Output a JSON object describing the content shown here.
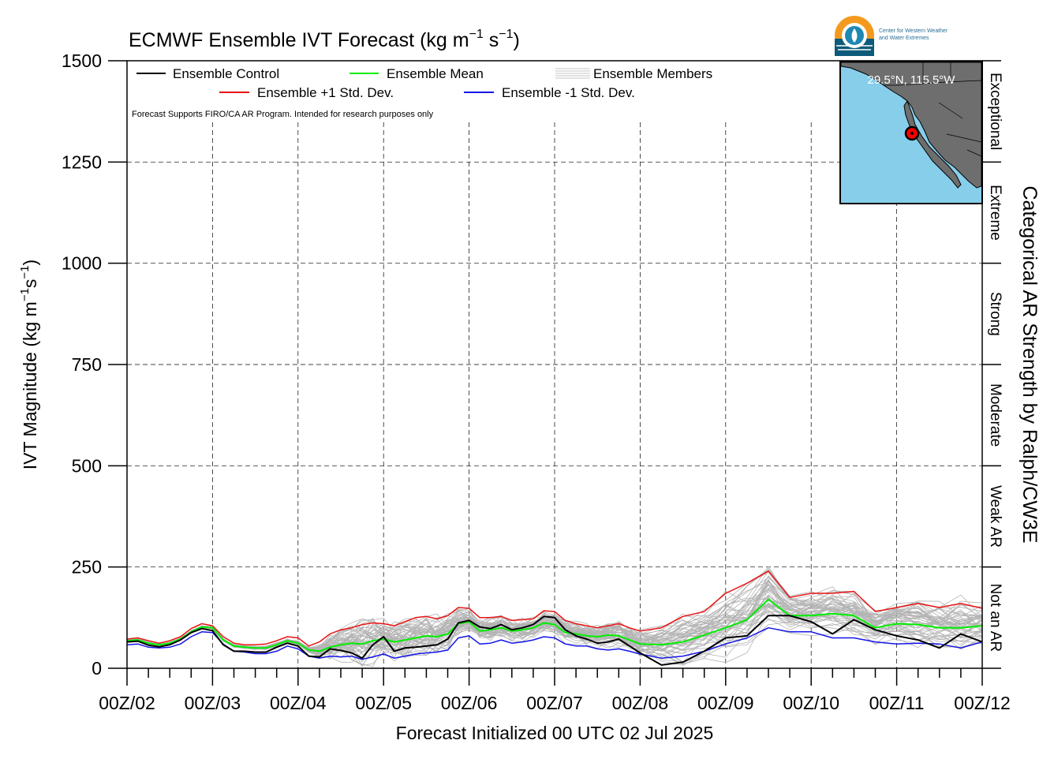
{
  "chart_data": {
    "type": "line",
    "title": "ECMWF Ensemble IVT Forecast (kg m",
    "title_sup1": "−1",
    "title_mid": " s",
    "title_sup2": "−1",
    "title_end": ")",
    "ylabel": "IVT Magnitude (kg m",
    "ylabel_sup1": "−1",
    "ylabel_mid": "s",
    "ylabel_sup2": "−1",
    "ylabel_end": ")",
    "y2label": "Categorical AR Strength by Ralph/CW3E",
    "xlabel": "Forecast Initialized 00 UTC 02 Jul 2025",
    "note": "Forecast Supports FIRO/CA AR Program. Intended for research purposes only",
    "ylim": [
      0,
      1500
    ],
    "yticks": [
      "0",
      "250",
      "500",
      "750",
      "1000",
      "1250",
      "1500"
    ],
    "yticks_values": [
      0,
      250,
      500,
      750,
      1000,
      1250,
      1500
    ],
    "xlim_days": [
      0,
      10
    ],
    "xticks": [
      "00Z/02",
      "00Z/03",
      "00Z/04",
      "00Z/05",
      "00Z/06",
      "00Z/07",
      "00Z/08",
      "00Z/09",
      "00Z/10",
      "00Z/11",
      "00Z/12"
    ],
    "categories": [
      {
        "label": "Not an AR",
        "range": [
          0,
          250
        ]
      },
      {
        "label": "Weak AR",
        "range": [
          250,
          500
        ]
      },
      {
        "label": "Moderate",
        "range": [
          500,
          750
        ]
      },
      {
        "label": "Strong",
        "range": [
          750,
          1000
        ]
      },
      {
        "label": "Extreme",
        "range": [
          1000,
          1250
        ]
      },
      {
        "label": "Exceptional",
        "range": [
          1250,
          1500
        ]
      }
    ],
    "grid": true,
    "legend_position": "top-left",
    "legend": [
      {
        "label": "Ensemble Control",
        "color": "#000000",
        "kind": "line"
      },
      {
        "label": "Ensemble Mean",
        "color": "#00ee00",
        "kind": "line"
      },
      {
        "label": "Ensemble Members",
        "color": "#b3b3b3",
        "kind": "lines"
      },
      {
        "label": "Ensemble +1 Std. Dev.",
        "color": "#e81414",
        "kind": "line"
      },
      {
        "label": "Ensemble -1 Std. Dev.",
        "color": "#1414e8",
        "kind": "line"
      }
    ],
    "series": [
      {
        "name": "Ensemble Control",
        "color": "#000000",
        "width": 2,
        "x": [
          0,
          0.125,
          0.25,
          0.375,
          0.5,
          0.625,
          0.75,
          0.875,
          1,
          1.125,
          1.25,
          1.375,
          1.5,
          1.625,
          1.75,
          1.875,
          2,
          2.125,
          2.25,
          2.375,
          2.5,
          2.625,
          2.75,
          2.875,
          3,
          3.125,
          3.25,
          3.375,
          3.5,
          3.625,
          3.75,
          3.875,
          4,
          4.125,
          4.25,
          4.375,
          4.5,
          4.625,
          4.75,
          4.875,
          5,
          5.125,
          5.25,
          5.375,
          5.5,
          5.625,
          5.75,
          5.875,
          6,
          6.25,
          6.5,
          6.75,
          7,
          7.25,
          7.5,
          7.75,
          8,
          8.25,
          8.5,
          8.75,
          9,
          9.25,
          9.5,
          9.75,
          10
        ],
        "y": [
          65,
          67,
          57,
          53,
          58,
          70,
          88,
          98,
          93,
          58,
          42,
          42,
          40,
          40,
          52,
          62,
          55,
          30,
          28,
          48,
          44,
          38,
          25,
          58,
          78,
          42,
          50,
          52,
          55,
          58,
          72,
          112,
          118,
          102,
          98,
          108,
          95,
          100,
          108,
          128,
          125,
          95,
          80,
          72,
          62,
          65,
          72,
          55,
          38,
          8,
          15,
          42,
          75,
          80,
          130,
          130,
          115,
          85,
          120,
          95,
          80,
          70,
          50,
          85,
          65
        ]
      },
      {
        "name": "Ensemble Mean",
        "color": "#00ee00",
        "width": 2,
        "x": [
          0,
          0.125,
          0.25,
          0.375,
          0.5,
          0.625,
          0.75,
          0.875,
          1,
          1.125,
          1.25,
          1.375,
          1.5,
          1.625,
          1.75,
          1.875,
          2,
          2.125,
          2.25,
          2.375,
          2.5,
          2.625,
          2.75,
          2.875,
          3,
          3.125,
          3.25,
          3.375,
          3.5,
          3.625,
          3.75,
          3.875,
          4,
          4.125,
          4.25,
          4.375,
          4.5,
          4.625,
          4.75,
          4.875,
          5,
          5.125,
          5.25,
          5.375,
          5.5,
          5.625,
          5.75,
          5.875,
          6,
          6.25,
          6.5,
          6.75,
          7,
          7.25,
          7.5,
          7.75,
          8,
          8.25,
          8.5,
          8.75,
          9,
          9.25,
          9.5,
          9.75,
          10
        ],
        "y": [
          68,
          70,
          62,
          58,
          62,
          72,
          90,
          102,
          100,
          70,
          55,
          52,
          50,
          50,
          58,
          68,
          62,
          45,
          42,
          52,
          58,
          62,
          60,
          68,
          72,
          65,
          70,
          75,
          80,
          78,
          85,
          110,
          115,
          92,
          95,
          100,
          92,
          95,
          100,
          112,
          108,
          88,
          85,
          80,
          78,
          82,
          80,
          70,
          60,
          58,
          65,
          82,
          100,
          120,
          170,
          130,
          130,
          135,
          130,
          100,
          110,
          108,
          100,
          100,
          105
        ]
      },
      {
        "name": "Ensemble +1 Std. Dev.",
        "color": "#e81414",
        "width": 1.5,
        "x": [
          0,
          0.125,
          0.25,
          0.375,
          0.5,
          0.625,
          0.75,
          0.875,
          1,
          1.125,
          1.25,
          1.375,
          1.5,
          1.625,
          1.75,
          1.875,
          2,
          2.125,
          2.25,
          2.375,
          2.5,
          2.625,
          2.75,
          2.875,
          3,
          3.125,
          3.25,
          3.375,
          3.5,
          3.625,
          3.75,
          3.875,
          4,
          4.125,
          4.25,
          4.375,
          4.5,
          4.625,
          4.75,
          4.875,
          5,
          5.125,
          5.25,
          5.375,
          5.5,
          5.625,
          5.75,
          5.875,
          6,
          6.25,
          6.5,
          6.75,
          7,
          7.25,
          7.5,
          7.75,
          8,
          8.25,
          8.5,
          8.75,
          9,
          9.25,
          9.5,
          9.75,
          10
        ],
        "y": [
          72,
          75,
          68,
          62,
          68,
          78,
          98,
          110,
          105,
          78,
          62,
          58,
          58,
          60,
          68,
          78,
          75,
          55,
          65,
          85,
          95,
          100,
          108,
          112,
          110,
          105,
          115,
          125,
          128,
          122,
          130,
          150,
          148,
          125,
          125,
          128,
          118,
          120,
          122,
          142,
          140,
          118,
          110,
          105,
          100,
          105,
          110,
          100,
          92,
          100,
          128,
          140,
          185,
          210,
          240,
          175,
          185,
          185,
          190,
          140,
          150,
          160,
          150,
          160,
          148
        ]
      },
      {
        "name": "Ensemble -1 Std. Dev.",
        "color": "#1414e8",
        "width": 1.5,
        "x": [
          0,
          0.125,
          0.25,
          0.375,
          0.5,
          0.625,
          0.75,
          0.875,
          1,
          1.125,
          1.25,
          1.375,
          1.5,
          1.625,
          1.75,
          1.875,
          2,
          2.125,
          2.25,
          2.375,
          2.5,
          2.625,
          2.75,
          2.875,
          3,
          3.125,
          3.25,
          3.375,
          3.5,
          3.625,
          3.75,
          3.875,
          4,
          4.125,
          4.25,
          4.375,
          4.5,
          4.625,
          4.75,
          4.875,
          5,
          5.125,
          5.25,
          5.375,
          5.5,
          5.625,
          5.75,
          5.875,
          6,
          6.25,
          6.5,
          6.75,
          7,
          7.25,
          7.5,
          7.75,
          8,
          8.25,
          8.5,
          8.75,
          9,
          9.25,
          9.5,
          9.75,
          10
        ],
        "y": [
          58,
          60,
          52,
          50,
          52,
          60,
          78,
          90,
          88,
          60,
          42,
          40,
          36,
          36,
          42,
          55,
          48,
          30,
          25,
          30,
          28,
          30,
          22,
          28,
          35,
          25,
          30,
          35,
          38,
          40,
          45,
          75,
          80,
          60,
          62,
          70,
          62,
          65,
          70,
          78,
          75,
          60,
          55,
          55,
          48,
          45,
          48,
          42,
          35,
          25,
          30,
          42,
          60,
          75,
          100,
          90,
          90,
          75,
          75,
          65,
          60,
          62,
          60,
          50,
          65
        ]
      }
    ],
    "member_count": 50,
    "member_color": "#b3b3b3",
    "member_spread_fraction": [
      0.08,
      0.08,
      0.08,
      0.08,
      0.08,
      0.08,
      0.08,
      0.08,
      0.1,
      0.12,
      0.12,
      0.12,
      0.12,
      0.12,
      0.12,
      0.12,
      0.15,
      0.3,
      0.6,
      0.9,
      1.1,
      1.2,
      1.3,
      1.3,
      1.2,
      1.1,
      1.0,
      1.0,
      1.0,
      1.0,
      0.9,
      0.7,
      0.7,
      0.8,
      0.8,
      0.8,
      0.8,
      0.8,
      0.8,
      0.7,
      0.7,
      0.8,
      0.8,
      0.8,
      0.9,
      0.9,
      0.9,
      1.0,
      1.1,
      1.1,
      1.1,
      1.1,
      1.1,
      1.1,
      1.0,
      0.9,
      0.9,
      0.9,
      0.9,
      1.0,
      1.0,
      1.0,
      1.1,
      1.1,
      1.1
    ]
  },
  "map_inset": {
    "label": "29.5°N, 115.5°W",
    "lat": 29.5,
    "lon": -115.5,
    "ocean_color": "#87ceeb",
    "land_color": "#6e6e6e",
    "marker_color": "#ff0000"
  },
  "logo": {
    "line1": "Center for Western Weather",
    "line2": "and Water Extremes"
  }
}
